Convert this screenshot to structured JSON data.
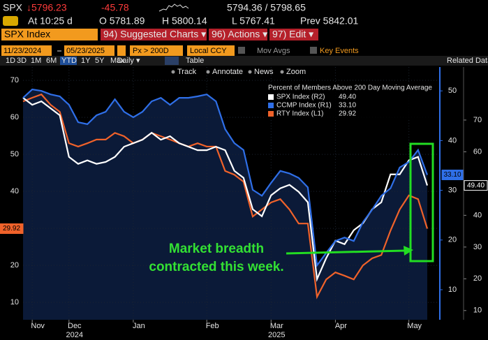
{
  "quote": {
    "ticker": "SPX",
    "last": "↓5796.23",
    "change": "-45.78",
    "bid_ask": "5794.36 / 5798.65",
    "time": "At 10:25 d",
    "open": "O 5781.89",
    "high": "H 5800.14",
    "low": "L 5767.41",
    "prev": "Prev 5842.01"
  },
  "toolbar": {
    "security": "SPX Index",
    "menus": [
      "94) Suggested Charts ▾",
      "96) Actions ▾",
      "97) Edit ▾"
    ],
    "start_date": "11/23/2024",
    "end_date": "05/23/2025",
    "field": "Px > 200D",
    "currency": "Local CCY",
    "mov_avgs": "Mov Avgs",
    "key_events": "Key Events",
    "periods": [
      "1D",
      "3D",
      "1M",
      "6M",
      "YTD",
      "1Y",
      "5Y",
      "Max"
    ],
    "frequency": "Daily ▾",
    "table": "Table",
    "related": "Related Data",
    "tools": [
      "Track",
      "Annotate",
      "News",
      "Zoom"
    ]
  },
  "chart_data": {
    "type": "line",
    "legend_title": "Percent of Members Above 200 Day Moving Average",
    "annotation": [
      "Market breadth",
      "contracted this week."
    ],
    "categories": [
      null,
      "Nov",
      null,
      null,
      null,
      "Dec",
      null,
      null,
      null,
      null,
      null,
      null,
      "Jan",
      null,
      null,
      null,
      null,
      null,
      null,
      null,
      "Feb",
      null,
      null,
      null,
      null,
      null,
      null,
      "Mar",
      null,
      null,
      null,
      null,
      null,
      null,
      "Apr",
      null,
      null,
      null,
      null,
      null,
      null,
      null,
      "May",
      null,
      null
    ],
    "x_sublabels": [
      null,
      null,
      null,
      null,
      null,
      "2024",
      null,
      null,
      null,
      null,
      null,
      null,
      null,
      null,
      null,
      null,
      null,
      null,
      null,
      null,
      null,
      null,
      null,
      null,
      null,
      null,
      null,
      "2025",
      null,
      null,
      null,
      null,
      null,
      null,
      null,
      null,
      null,
      null,
      null,
      null,
      null,
      null,
      null,
      null,
      null
    ],
    "ylim": [
      5.3,
      73.6
    ],
    "yticks": [
      10,
      20,
      30,
      40,
      50,
      60,
      70
    ],
    "y2lim": [
      3.96,
      54.8
    ],
    "y2ticks": [
      10,
      20,
      30,
      40,
      50
    ],
    "y3lim": [
      7.1,
      86.7
    ],
    "y3ticks": [
      10,
      20,
      30,
      40,
      50,
      60,
      70
    ],
    "grid": true,
    "area_under": "CCMP Index (R1)",
    "series": [
      {
        "name": "SPX Index (R2)",
        "color": "#ffffff",
        "axis": "y3",
        "values": [
          77.0,
          74.8,
          75.9,
          73.7,
          71.5,
          58.4,
          56.2,
          57.3,
          56.2,
          56.8,
          58.4,
          61.6,
          62.7,
          63.8,
          66.0,
          63.8,
          64.9,
          62.7,
          61.6,
          60.5,
          60.5,
          61.6,
          60.5,
          54.0,
          51.8,
          41.9,
          39.7,
          46.3,
          48.5,
          49.6,
          47.4,
          44.1,
          19.9,
          26.5,
          32.0,
          30.9,
          35.3,
          37.5,
          41.9,
          44.1,
          52.9,
          52.9,
          57.3,
          58.4,
          49.4
        ],
        "value_labels": [
          null,
          null,
          null,
          null,
          null,
          null,
          null,
          null,
          null,
          null,
          null,
          null,
          null,
          null,
          null,
          null,
          null,
          null,
          null,
          null,
          null,
          null,
          null,
          null,
          null,
          null,
          null,
          null,
          null,
          null,
          null,
          null,
          null,
          null,
          null,
          null,
          null,
          null,
          null,
          null,
          null,
          null,
          null,
          null,
          "49.40"
        ]
      },
      {
        "name": "CCMP Index (R1)",
        "color": "#2f6fe8",
        "axis": "y2",
        "values": [
          48.6,
          50.3,
          50.0,
          49.3,
          48.9,
          47.2,
          43.7,
          43.3,
          45.1,
          45.8,
          48.3,
          45.8,
          44.7,
          45.8,
          47.9,
          48.6,
          47.2,
          48.6,
          48.6,
          48.9,
          49.3,
          47.9,
          42.3,
          39.5,
          38.1,
          30.1,
          28.9,
          31.5,
          33.9,
          33.4,
          32.5,
          30.6,
          14.9,
          17.4,
          19.8,
          20.5,
          19.8,
          23.6,
          26.1,
          28.9,
          30.4,
          34.6,
          35.7,
          38.1,
          33.1
        ],
        "value_labels": [
          null,
          null,
          null,
          null,
          null,
          null,
          null,
          null,
          null,
          null,
          null,
          null,
          null,
          null,
          null,
          null,
          null,
          null,
          null,
          null,
          null,
          null,
          null,
          null,
          null,
          null,
          null,
          null,
          null,
          null,
          null,
          null,
          null,
          null,
          null,
          null,
          null,
          null,
          null,
          null,
          null,
          null,
          null,
          null,
          "33.10"
        ]
      },
      {
        "name": "RTY Index (L1)",
        "color": "#f0622a",
        "axis": "y",
        "values": [
          64.3,
          65.3,
          66.2,
          63.4,
          61.5,
          53.0,
          52.1,
          53.0,
          54.0,
          54.0,
          55.8,
          54.9,
          53.0,
          54.0,
          55.8,
          54.9,
          54.0,
          53.0,
          52.1,
          53.0,
          52.1,
          52.1,
          45.5,
          44.5,
          42.6,
          33.2,
          35.1,
          37.0,
          37.9,
          35.1,
          31.3,
          31.3,
          11.5,
          16.2,
          18.1,
          17.2,
          16.2,
          20.0,
          21.9,
          22.8,
          29.4,
          35.1,
          38.9,
          37.9,
          29.92
        ]
      }
    ]
  }
}
